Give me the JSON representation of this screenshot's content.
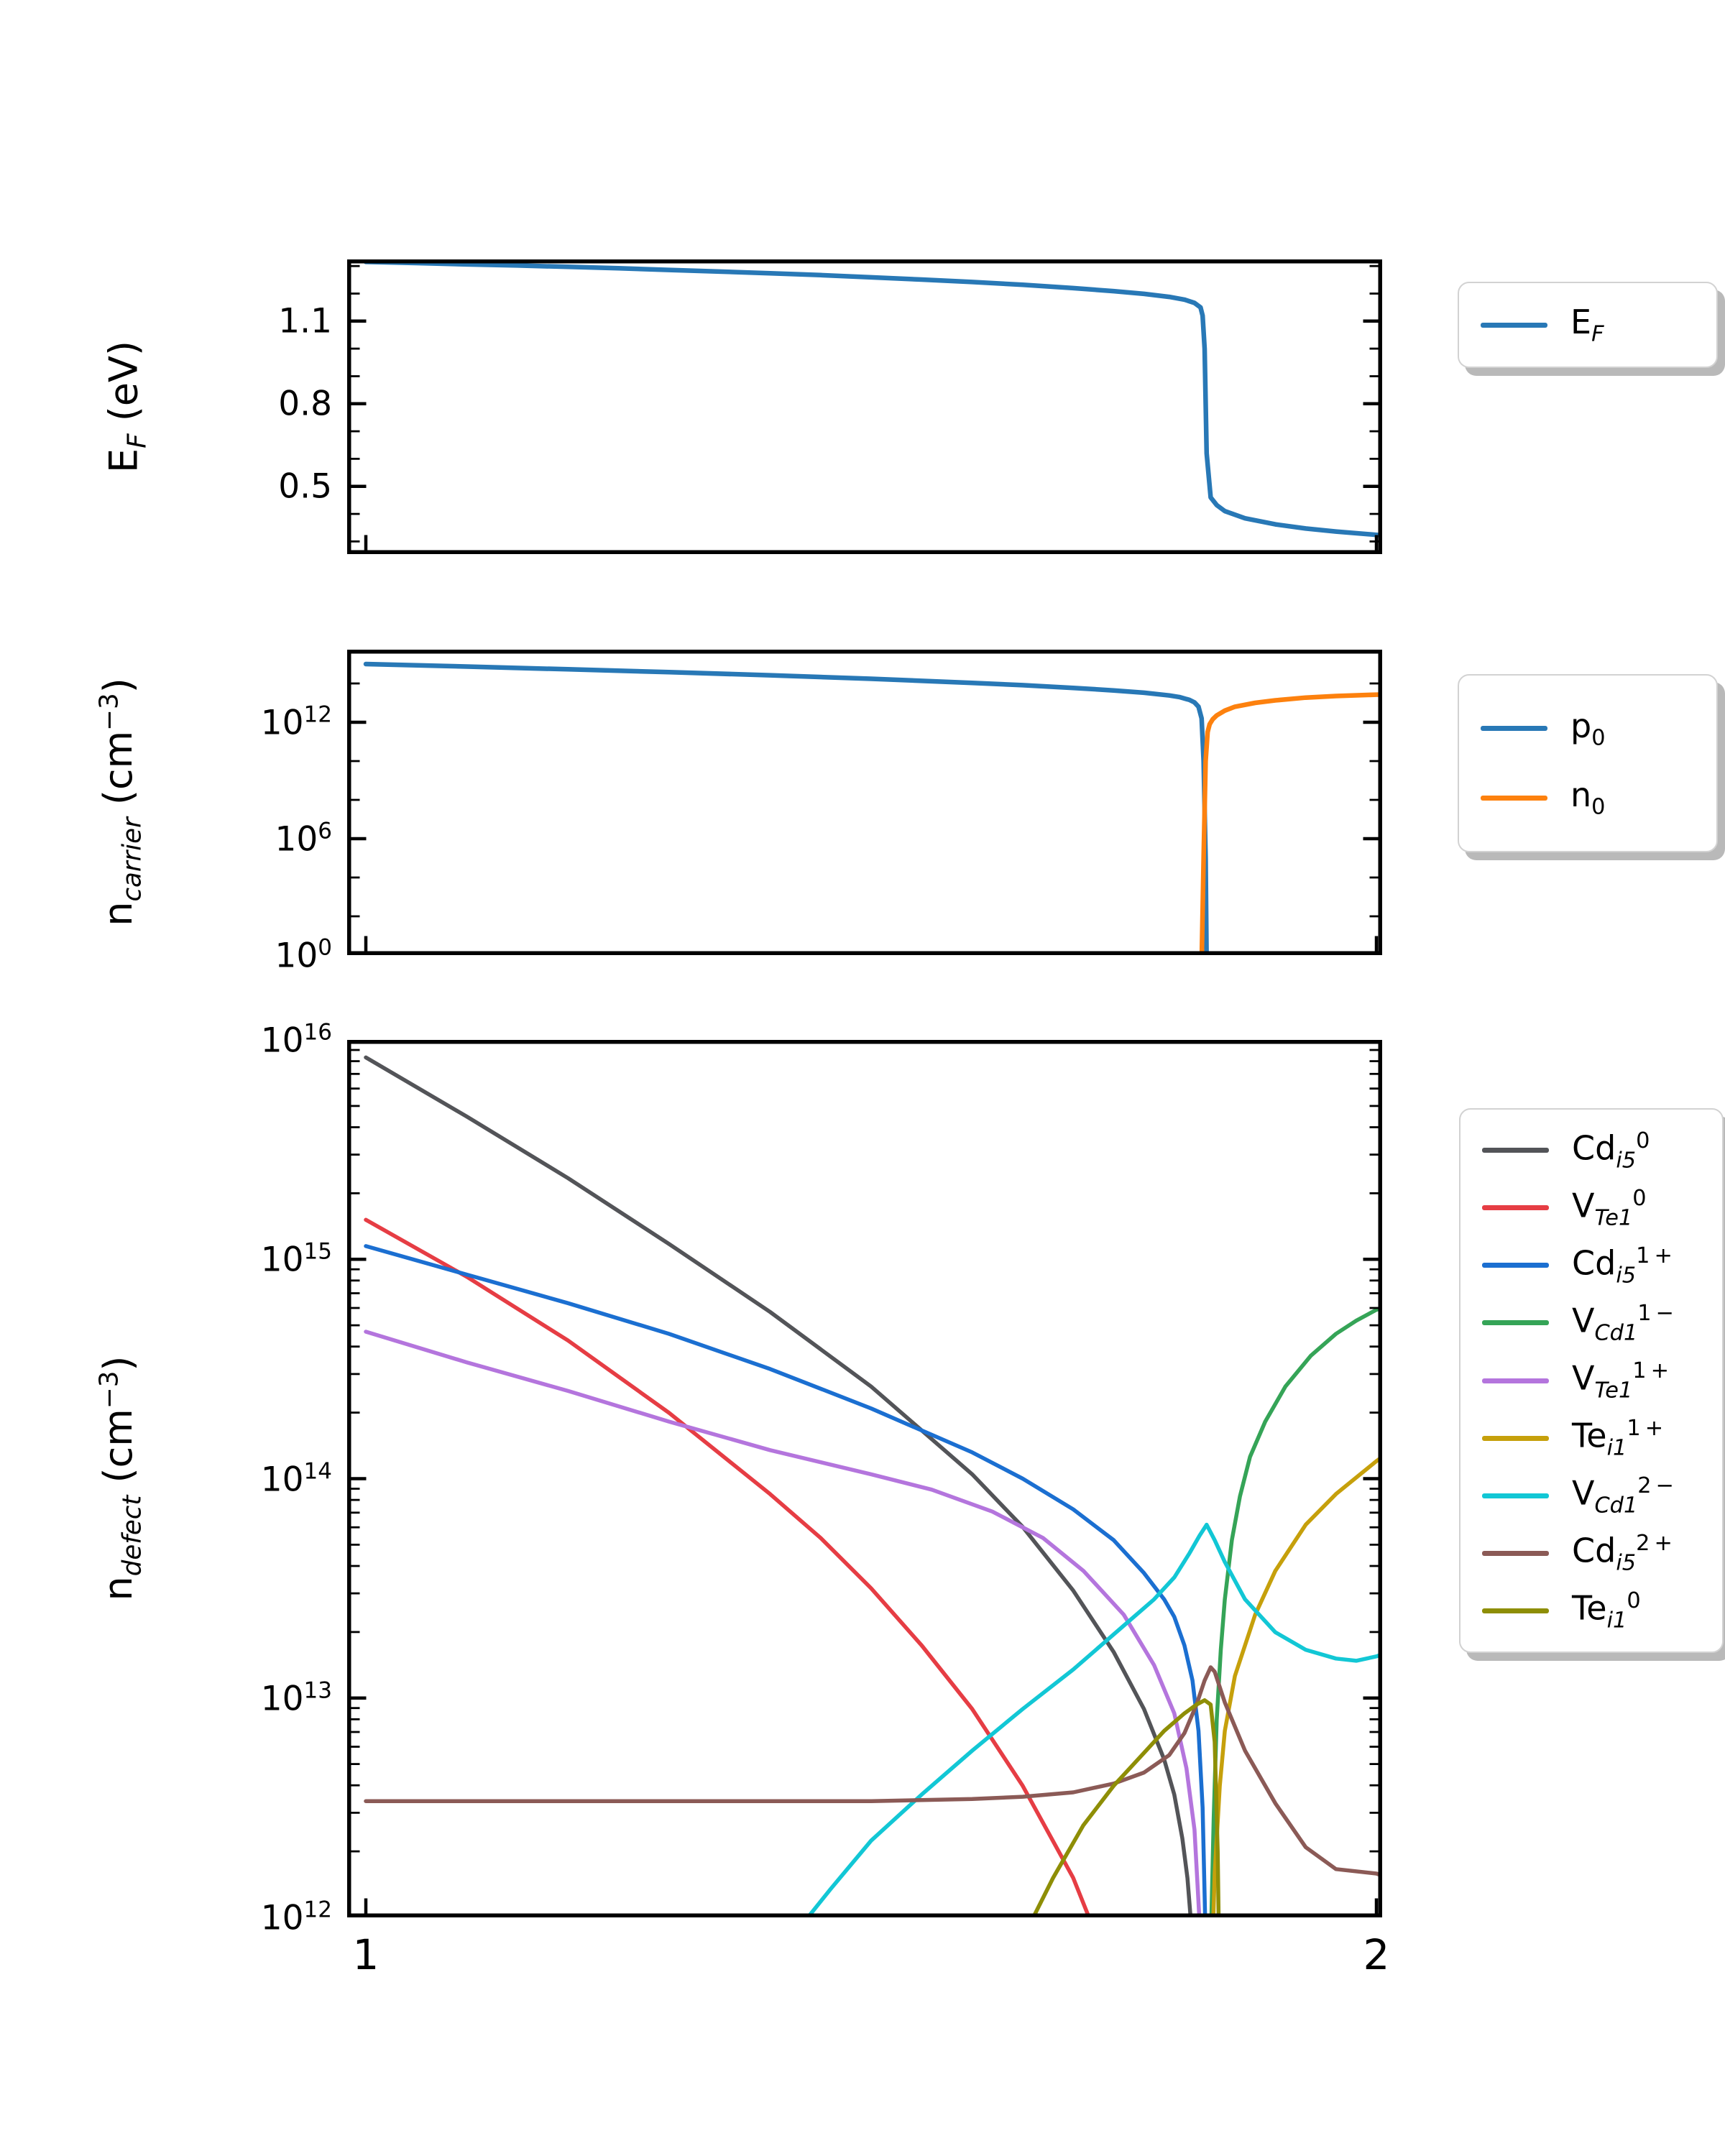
{
  "figure": {
    "background": "#ffffff",
    "text_color": "#000000",
    "axes_color": "#000000"
  },
  "chart_data": [
    {
      "id": "fermi",
      "type": "line",
      "title": "",
      "xlabel": "",
      "ylabel": "E_F (eV)",
      "ylabel_segments": [
        {
          "t": "E"
        },
        {
          "t": "F",
          "s": "sub"
        },
        {
          "t": " (eV)"
        }
      ],
      "xlim": [
        0.9815,
        2.0057
      ],
      "ylim": [
        0.254,
        1.324
      ],
      "yscale": "linear",
      "grid": false,
      "legend_position": "outside-right",
      "yticks_major": [
        {
          "v": 1.1,
          "t": "1.1"
        },
        {
          "v": 0.8,
          "t": "0.8"
        },
        {
          "v": 0.5,
          "t": "0.5"
        }
      ],
      "yticks_minor": [
        0.3,
        0.4,
        0.6,
        0.7,
        0.9,
        1.0,
        1.2,
        1.3
      ],
      "xticks_major": [
        {
          "v": 1,
          "t": "1"
        },
        {
          "v": 2,
          "t": "2"
        }
      ],
      "show_xtick_labels": false,
      "series": [
        {
          "name": "E_F",
          "label_segments": [
            {
              "t": "E"
            },
            {
              "t": "F",
              "s": "sub"
            }
          ],
          "color": "#2878b6",
          "in_legend": true,
          "x": [
            1.0,
            1.05,
            1.1,
            1.15,
            1.2,
            1.25,
            1.3,
            1.35,
            1.4,
            1.45,
            1.5,
            1.55,
            1.6,
            1.65,
            1.7,
            1.74,
            1.77,
            1.795,
            1.81,
            1.82,
            1.826,
            1.828,
            1.83,
            1.832,
            1.836,
            1.842,
            1.85,
            1.87,
            1.9,
            1.93,
            1.96,
            2.0,
            2.006
          ],
          "y": [
            1.315,
            1.311,
            1.306,
            1.302,
            1.297,
            1.292,
            1.286,
            1.28,
            1.274,
            1.267,
            1.259,
            1.251,
            1.242,
            1.232,
            1.22,
            1.209,
            1.199,
            1.188,
            1.178,
            1.166,
            1.15,
            1.12,
            1.0,
            0.62,
            0.46,
            0.432,
            0.41,
            0.384,
            0.362,
            0.347,
            0.336,
            0.324,
            0.322
          ]
        }
      ]
    },
    {
      "id": "carrier",
      "type": "line",
      "title": "",
      "xlabel": "",
      "ylabel": "n_carrier (cm^-3)",
      "ylabel_segments": [
        {
          "t": "n"
        },
        {
          "t": "carrier",
          "s": "sub"
        },
        {
          "t": " (cm"
        },
        {
          "t": "−3",
          "s": "sup"
        },
        {
          "t": ")"
        }
      ],
      "xlim": [
        0.9815,
        2.0057
      ],
      "ylim_log10": [
        0,
        15.74
      ],
      "yscale": "log10",
      "grid": false,
      "legend_position": "outside-right",
      "yticks_major": [
        {
          "v": 12,
          "base": "10",
          "exp": "12"
        },
        {
          "v": 6,
          "base": "10",
          "exp": "6"
        },
        {
          "v": 0,
          "base": "10",
          "exp": "0"
        }
      ],
      "yticks_minor": [
        2,
        4,
        8,
        10,
        14
      ],
      "xticks_major": [
        {
          "v": 1,
          "t": "1"
        },
        {
          "v": 2,
          "t": "2"
        }
      ],
      "show_xtick_labels": false,
      "series": [
        {
          "name": "p_0",
          "label_segments": [
            {
              "t": "p"
            },
            {
              "t": "0",
              "s": "subn"
            }
          ],
          "color": "#2878b6",
          "in_legend": true,
          "x": [
            1.0,
            1.1,
            1.2,
            1.3,
            1.4,
            1.5,
            1.6,
            1.65,
            1.7,
            1.74,
            1.77,
            1.795,
            1.805,
            1.815,
            1.82,
            1.824,
            1.827,
            1.829,
            1.831,
            1.832
          ],
          "y_log10": [
            15.0,
            14.87,
            14.73,
            14.58,
            14.42,
            14.24,
            14.03,
            13.91,
            13.77,
            13.64,
            13.52,
            13.38,
            13.3,
            13.15,
            13.02,
            12.8,
            12.2,
            10.0,
            5.0,
            -0.5
          ]
        },
        {
          "name": "n_0",
          "label_segments": [
            {
              "t": "n"
            },
            {
              "t": "0",
              "s": "subn"
            }
          ],
          "color": "#fd810e",
          "in_legend": true,
          "x": [
            1.827,
            1.829,
            1.831,
            1.833,
            1.835,
            1.838,
            1.842,
            1.85,
            1.86,
            1.88,
            1.9,
            1.93,
            1.96,
            2.0,
            2.006
          ],
          "y_log10": [
            -0.5,
            5.0,
            10.0,
            11.5,
            11.9,
            12.15,
            12.35,
            12.6,
            12.8,
            13.0,
            13.13,
            13.27,
            13.35,
            13.42,
            13.43
          ]
        }
      ]
    },
    {
      "id": "defect",
      "type": "line",
      "title": "",
      "xlabel": "",
      "ylabel": "n_defect (cm^-3)",
      "ylabel_segments": [
        {
          "t": "n"
        },
        {
          "t": "defect",
          "s": "sub"
        },
        {
          "t": " (cm"
        },
        {
          "t": "−3",
          "s": "sup"
        },
        {
          "t": ")"
        }
      ],
      "xlim": [
        0.9815,
        2.0057
      ],
      "ylim_log10": [
        12,
        16
      ],
      "yscale": "log10",
      "grid": false,
      "legend_position": "outside-right",
      "yticks_major": [
        {
          "v": 16,
          "base": "10",
          "exp": "16"
        },
        {
          "v": 15,
          "base": "10",
          "exp": "15"
        },
        {
          "v": 14,
          "base": "10",
          "exp": "14"
        },
        {
          "v": 13,
          "base": "10",
          "exp": "13"
        },
        {
          "v": 12,
          "base": "10",
          "exp": "12"
        }
      ],
      "log_minor_ticks": true,
      "xticks_major": [
        {
          "v": 1,
          "t": "1"
        },
        {
          "v": 2,
          "t": "2"
        }
      ],
      "show_xtick_labels": true,
      "series": [
        {
          "name": "Cd_i5^0",
          "label_segments": [
            {
              "t": "Cd"
            },
            {
              "t": "i5",
              "s": "sub"
            },
            {
              "t": "0",
              "s": "sup"
            }
          ],
          "color": "#535458",
          "in_legend": true,
          "x": [
            1.0,
            1.1,
            1.2,
            1.3,
            1.4,
            1.5,
            1.6,
            1.65,
            1.7,
            1.74,
            1.77,
            1.79,
            1.8,
            1.808,
            1.813,
            1.817,
            1.82,
            1.823
          ],
          "y_log10": [
            15.92,
            15.65,
            15.37,
            15.07,
            14.76,
            14.42,
            14.02,
            13.78,
            13.49,
            13.21,
            12.95,
            12.72,
            12.56,
            12.36,
            12.18,
            11.95,
            11.5,
            10.8
          ]
        },
        {
          "name": "V_Te1^0",
          "label_segments": [
            {
              "t": "V"
            },
            {
              "t": "Te1",
              "s": "sub"
            },
            {
              "t": "0",
              "s": "sup"
            }
          ],
          "color": "#e63d44",
          "in_legend": true,
          "x": [
            1.0,
            1.1,
            1.2,
            1.3,
            1.4,
            1.45,
            1.5,
            1.55,
            1.6,
            1.65,
            1.7,
            1.72,
            1.735
          ],
          "y_log10": [
            15.18,
            14.92,
            14.63,
            14.3,
            13.93,
            13.73,
            13.5,
            13.24,
            12.95,
            12.6,
            12.18,
            11.95,
            11.6
          ]
        },
        {
          "name": "Cd_i5^1+",
          "label_segments": [
            {
              "t": "Cd"
            },
            {
              "t": "i5",
              "s": "sub"
            },
            {
              "t": "1 +",
              "s": "sup"
            }
          ],
          "color": "#1b6fd1",
          "in_legend": true,
          "x": [
            1.0,
            1.1,
            1.2,
            1.3,
            1.4,
            1.5,
            1.6,
            1.65,
            1.7,
            1.74,
            1.77,
            1.79,
            1.8,
            1.81,
            1.818,
            1.824,
            1.828,
            1.831,
            1.834
          ],
          "y_log10": [
            15.06,
            14.93,
            14.8,
            14.66,
            14.5,
            14.32,
            14.12,
            14.0,
            13.86,
            13.72,
            13.57,
            13.45,
            13.37,
            13.24,
            13.08,
            12.85,
            12.5,
            11.9,
            11.0
          ]
        },
        {
          "name": "V_Cd1^1-",
          "label_segments": [
            {
              "t": "V"
            },
            {
              "t": "Cd1",
              "s": "sub"
            },
            {
              "t": "1 −",
              "s": "sup"
            }
          ],
          "color": "#35a457",
          "in_legend": true,
          "x": [
            1.833,
            1.836,
            1.839,
            1.842,
            1.846,
            1.85,
            1.857,
            1.865,
            1.875,
            1.89,
            1.91,
            1.935,
            1.96,
            1.98,
            2.0,
            2.006
          ],
          "y_log10": [
            11.0,
            11.85,
            12.45,
            12.9,
            13.22,
            13.45,
            13.72,
            13.92,
            14.1,
            14.26,
            14.42,
            14.56,
            14.66,
            14.72,
            14.77,
            14.78
          ]
        },
        {
          "name": "V_Te1^1+",
          "label_segments": [
            {
              "t": "V"
            },
            {
              "t": "Te1",
              "s": "sub"
            },
            {
              "t": "1 +",
              "s": "sup"
            }
          ],
          "color": "#b475dd",
          "in_legend": true,
          "x": [
            1.0,
            1.1,
            1.2,
            1.3,
            1.4,
            1.5,
            1.56,
            1.62,
            1.67,
            1.71,
            1.75,
            1.78,
            1.8,
            1.812,
            1.82,
            1.826,
            1.83
          ],
          "y_log10": [
            14.67,
            14.53,
            14.4,
            14.26,
            14.13,
            14.02,
            13.95,
            13.85,
            13.73,
            13.58,
            13.38,
            13.15,
            12.93,
            12.68,
            12.4,
            11.9,
            11.1
          ]
        },
        {
          "name": "Te_i1^1+",
          "label_segments": [
            {
              "t": "Te"
            },
            {
              "t": "i1",
              "s": "sub"
            },
            {
              "t": "1 +",
              "s": "sup"
            }
          ],
          "color": "#c6a00b",
          "in_legend": true,
          "x": [
            1.834,
            1.837,
            1.84,
            1.845,
            1.85,
            1.86,
            1.88,
            1.9,
            1.93,
            1.96,
            2.0,
            2.006
          ],
          "y_log10": [
            11.0,
            11.75,
            12.2,
            12.6,
            12.85,
            13.1,
            13.38,
            13.58,
            13.79,
            13.93,
            14.08,
            14.1
          ]
        },
        {
          "name": "V_Cd1^2-",
          "label_segments": [
            {
              "t": "V"
            },
            {
              "t": "Cd1",
              "s": "sub"
            },
            {
              "t": "2 −",
              "s": "sup"
            }
          ],
          "color": "#12c7d5",
          "in_legend": true,
          "x": [
            1.42,
            1.46,
            1.5,
            1.55,
            1.6,
            1.65,
            1.7,
            1.75,
            1.78,
            1.8,
            1.815,
            1.825,
            1.832,
            1.84,
            1.85,
            1.87,
            1.9,
            1.93,
            1.96,
            1.98,
            2.0,
            2.006
          ],
          "y_log10": [
            11.9,
            12.13,
            12.35,
            12.56,
            12.76,
            12.95,
            13.13,
            13.33,
            13.45,
            13.55,
            13.66,
            13.74,
            13.79,
            13.72,
            13.62,
            13.45,
            13.3,
            13.22,
            13.18,
            13.17,
            13.19,
            13.2
          ]
        },
        {
          "name": "Cd_i5^2+",
          "label_segments": [
            {
              "t": "Cd"
            },
            {
              "t": "i5",
              "s": "sub"
            },
            {
              "t": "2 +",
              "s": "sup"
            }
          ],
          "color": "#8b5a56",
          "in_legend": true,
          "x": [
            1.0,
            1.1,
            1.2,
            1.3,
            1.4,
            1.5,
            1.6,
            1.65,
            1.7,
            1.74,
            1.77,
            1.795,
            1.81,
            1.822,
            1.83,
            1.836,
            1.84,
            1.85,
            1.87,
            1.9,
            1.93,
            1.96,
            2.0,
            2.006
          ],
          "y_log10": [
            12.53,
            12.53,
            12.53,
            12.53,
            12.53,
            12.53,
            12.54,
            12.55,
            12.57,
            12.61,
            12.66,
            12.74,
            12.84,
            12.97,
            13.08,
            13.14,
            13.12,
            12.98,
            12.76,
            12.52,
            12.32,
            12.22,
            12.2,
            12.19
          ]
        },
        {
          "name": "Te_i1^0",
          "label_segments": [
            {
              "t": "Te"
            },
            {
              "t": "i1",
              "s": "sub"
            },
            {
              "t": "0",
              "s": "sup"
            }
          ],
          "color": "#8e8e06",
          "in_legend": true,
          "x": [
            1.655,
            1.68,
            1.71,
            1.74,
            1.77,
            1.79,
            1.81,
            1.822,
            1.83,
            1.836,
            1.84,
            1.843,
            1.845,
            1.847
          ],
          "y_log10": [
            11.95,
            12.18,
            12.42,
            12.6,
            12.75,
            12.85,
            12.93,
            12.97,
            12.99,
            12.97,
            12.8,
            12.3,
            11.6,
            11.0
          ]
        }
      ]
    }
  ]
}
